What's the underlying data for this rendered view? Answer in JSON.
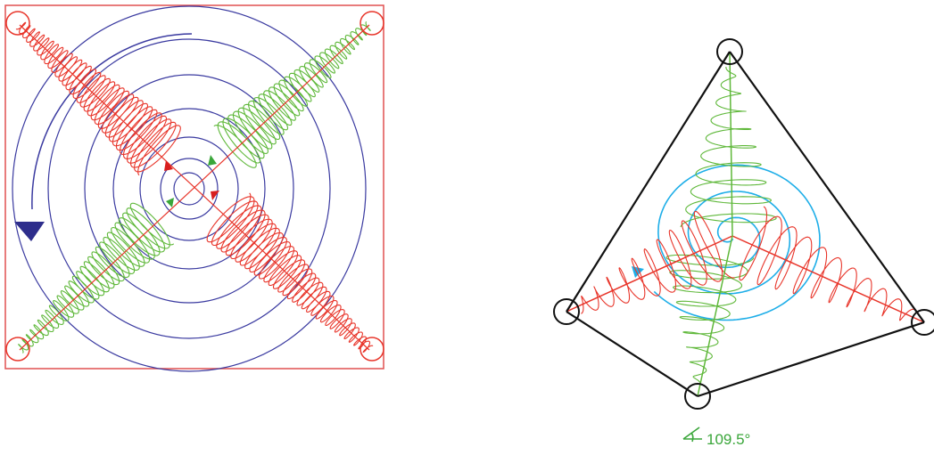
{
  "figure": {
    "angle_label": "109.5°",
    "colors": {
      "red": "#e8352a",
      "green": "#5fb83a",
      "blue": "#3a3aa0",
      "cyan": "#1eaee8",
      "black": "#111111",
      "frame": "#e05050"
    }
  }
}
